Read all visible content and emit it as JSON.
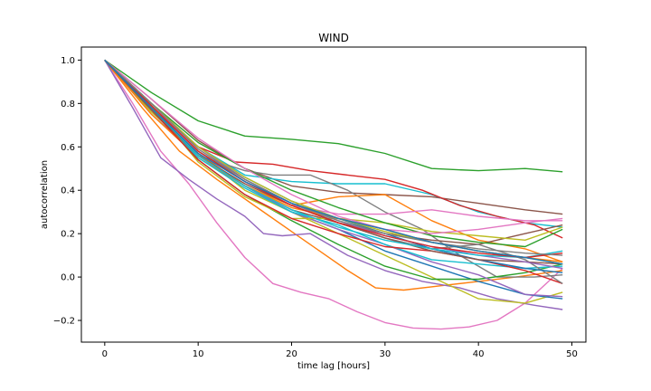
{
  "chart_data": {
    "type": "line",
    "title": "WIND",
    "xlabel": "time lag [hours]",
    "ylabel": "autocorrelation",
    "xlim": [
      -2.5,
      51.5
    ],
    "ylim": [
      -0.3,
      1.06
    ],
    "xticks": [
      0,
      10,
      20,
      30,
      40,
      50
    ],
    "yticks": [
      -0.2,
      0.0,
      0.2,
      0.4,
      0.6,
      0.8,
      1.0
    ],
    "xtick_labels": [
      "0",
      "10",
      "20",
      "30",
      "40",
      "50"
    ],
    "ytick_labels": [
      "−0.2",
      "0.0",
      "0.2",
      "0.4",
      "0.6",
      "0.8",
      "1.0"
    ],
    "grid": false,
    "legend": false,
    "series": [
      {
        "color": "#2ca02c",
        "x": [
          0,
          5,
          10,
          15,
          20,
          25,
          30,
          35,
          40,
          45,
          49
        ],
        "y": [
          1.0,
          0.85,
          0.72,
          0.65,
          0.635,
          0.615,
          0.57,
          0.5,
          0.49,
          0.5,
          0.485
        ]
      },
      {
        "color": "#e377c2",
        "x": [
          0,
          3,
          6,
          9,
          12,
          15,
          18,
          21,
          24,
          27,
          30,
          33,
          36,
          39,
          42,
          45,
          49
        ],
        "y": [
          1.0,
          0.8,
          0.58,
          0.43,
          0.25,
          0.09,
          -0.03,
          -0.07,
          -0.1,
          -0.16,
          -0.21,
          -0.235,
          -0.24,
          -0.23,
          -0.2,
          -0.12,
          0.04
        ]
      },
      {
        "color": "#8c564b",
        "x": [
          0,
          5,
          10,
          15,
          20,
          25,
          30,
          35,
          40,
          45,
          49
        ],
        "y": [
          1.0,
          0.82,
          0.63,
          0.5,
          0.42,
          0.39,
          0.38,
          0.37,
          0.34,
          0.31,
          0.29
        ]
      },
      {
        "color": "#17becf",
        "x": [
          0,
          5,
          10,
          15,
          20,
          25,
          30,
          35,
          40,
          45,
          49
        ],
        "y": [
          1.0,
          0.8,
          0.6,
          0.47,
          0.44,
          0.43,
          0.43,
          0.38,
          0.3,
          0.25,
          0.23
        ]
      },
      {
        "color": "#d62728",
        "x": [
          0,
          5,
          10,
          14,
          18,
          22,
          26,
          30,
          34,
          38,
          42,
          46,
          49
        ],
        "y": [
          1.0,
          0.78,
          0.6,
          0.53,
          0.52,
          0.49,
          0.47,
          0.45,
          0.4,
          0.33,
          0.28,
          0.24,
          0.18
        ]
      },
      {
        "color": "#ff7f0e",
        "x": [
          0,
          4,
          8,
          12,
          16,
          20,
          23,
          26,
          29,
          32,
          36,
          40,
          44,
          49
        ],
        "y": [
          1.0,
          0.78,
          0.58,
          0.45,
          0.33,
          0.21,
          0.12,
          0.03,
          -0.05,
          -0.06,
          -0.04,
          -0.02,
          0.0,
          0.03
        ]
      },
      {
        "color": "#9467bd",
        "x": [
          0,
          3,
          6,
          9,
          12,
          15,
          17,
          19,
          22,
          26,
          30,
          34,
          38,
          42,
          46,
          49
        ],
        "y": [
          1.0,
          0.78,
          0.55,
          0.45,
          0.36,
          0.28,
          0.2,
          0.19,
          0.2,
          0.1,
          0.03,
          -0.02,
          -0.05,
          -0.1,
          -0.13,
          -0.15
        ]
      },
      {
        "color": "#bcbd22",
        "x": [
          0,
          5,
          10,
          15,
          20,
          25,
          30,
          35,
          40,
          45,
          49
        ],
        "y": [
          1.0,
          0.76,
          0.57,
          0.4,
          0.3,
          0.2,
          0.1,
          0.0,
          -0.1,
          -0.12,
          -0.07
        ]
      },
      {
        "color": "#7f7f7f",
        "x": [
          0,
          5,
          10,
          15,
          18,
          22,
          26,
          30,
          34,
          38,
          42,
          46,
          49
        ],
        "y": [
          1.0,
          0.75,
          0.56,
          0.49,
          0.47,
          0.47,
          0.4,
          0.3,
          0.22,
          0.1,
          0.0,
          0.0,
          0.01
        ]
      },
      {
        "color": "#1f77b4",
        "x": [
          0,
          5,
          10,
          15,
          20,
          25,
          30,
          35,
          40,
          45,
          49
        ],
        "y": [
          1.0,
          0.77,
          0.56,
          0.42,
          0.3,
          0.22,
          0.12,
          0.05,
          -0.02,
          -0.08,
          -0.1
        ]
      },
      {
        "color": "#ff7f0e",
        "x": [
          0,
          5,
          10,
          15,
          20,
          25,
          30,
          35,
          40,
          45,
          49
        ],
        "y": [
          1.0,
          0.75,
          0.55,
          0.42,
          0.33,
          0.37,
          0.38,
          0.26,
          0.17,
          0.13,
          0.07
        ]
      },
      {
        "color": "#2ca02c",
        "x": [
          0,
          5,
          10,
          15,
          20,
          25,
          30,
          35,
          40,
          45,
          49
        ],
        "y": [
          1.0,
          0.78,
          0.54,
          0.38,
          0.26,
          0.15,
          0.05,
          -0.01,
          -0.01,
          0.02,
          0.06
        ]
      },
      {
        "color": "#e377c2",
        "x": [
          0,
          5,
          10,
          15,
          20,
          25,
          30,
          35,
          40,
          45,
          49
        ],
        "y": [
          1.0,
          0.8,
          0.58,
          0.44,
          0.33,
          0.29,
          0.29,
          0.31,
          0.28,
          0.26,
          0.26
        ]
      },
      {
        "color": "#8c564b",
        "x": [
          0,
          5,
          10,
          15,
          20,
          25,
          30,
          35,
          40,
          45,
          49
        ],
        "y": [
          1.0,
          0.79,
          0.56,
          0.42,
          0.31,
          0.25,
          0.2,
          0.17,
          0.15,
          0.2,
          0.24
        ]
      },
      {
        "color": "#9467bd",
        "x": [
          0,
          5,
          10,
          15,
          20,
          25,
          30,
          35,
          40,
          45,
          49
        ],
        "y": [
          1.0,
          0.78,
          0.56,
          0.42,
          0.3,
          0.22,
          0.15,
          0.07,
          0.01,
          -0.08,
          -0.09
        ]
      },
      {
        "color": "#17becf",
        "x": [
          0,
          5,
          10,
          15,
          20,
          25,
          30,
          35,
          40,
          45,
          49
        ],
        "y": [
          1.0,
          0.77,
          0.55,
          0.41,
          0.3,
          0.24,
          0.15,
          0.08,
          0.06,
          0.04,
          0.05
        ]
      },
      {
        "color": "#bcbd22",
        "x": [
          0,
          5,
          10,
          15,
          20,
          25,
          30,
          35,
          40,
          45,
          49
        ],
        "y": [
          1.0,
          0.79,
          0.53,
          0.37,
          0.27,
          0.27,
          0.25,
          0.21,
          0.19,
          0.17,
          0.23
        ]
      },
      {
        "color": "#d62728",
        "x": [
          0,
          5,
          10,
          15,
          20,
          25,
          30,
          35,
          40,
          45,
          49
        ],
        "y": [
          1.0,
          0.77,
          0.54,
          0.38,
          0.27,
          0.2,
          0.14,
          0.12,
          0.08,
          0.03,
          -0.03
        ]
      },
      {
        "color": "#7f7f7f",
        "x": [
          0,
          5,
          10,
          15,
          20,
          25,
          30,
          35,
          40,
          45,
          49
        ],
        "y": [
          1.0,
          0.79,
          0.58,
          0.45,
          0.34,
          0.25,
          0.18,
          0.13,
          0.15,
          0.08,
          -0.03
        ]
      },
      {
        "color": "#1f77b4",
        "x": [
          0,
          5,
          10,
          15,
          20,
          25,
          30,
          35,
          40,
          45,
          49
        ],
        "y": [
          1.0,
          0.8,
          0.6,
          0.46,
          0.35,
          0.27,
          0.2,
          0.13,
          0.08,
          0.04,
          0.02
        ]
      },
      {
        "color": "#ff7f0e",
        "x": [
          0,
          5,
          10,
          15,
          20,
          25,
          30,
          35,
          40,
          45,
          49
        ],
        "y": [
          1.0,
          0.78,
          0.57,
          0.42,
          0.32,
          0.27,
          0.22,
          0.16,
          0.12,
          0.09,
          0.07
        ]
      },
      {
        "color": "#2ca02c",
        "x": [
          0,
          5,
          10,
          15,
          20,
          25,
          30,
          35,
          40,
          45,
          49
        ],
        "y": [
          1.0,
          0.8,
          0.62,
          0.5,
          0.4,
          0.32,
          0.25,
          0.19,
          0.16,
          0.14,
          0.22
        ]
      },
      {
        "color": "#e377c2",
        "x": [
          0,
          5,
          10,
          15,
          20,
          25,
          30,
          35,
          40,
          45,
          49
        ],
        "y": [
          1.0,
          0.82,
          0.64,
          0.5,
          0.38,
          0.28,
          0.22,
          0.2,
          0.22,
          0.25,
          0.27
        ]
      },
      {
        "color": "#8c564b",
        "x": [
          0,
          5,
          10,
          15,
          20,
          25,
          30,
          35,
          40,
          45,
          49
        ],
        "y": [
          1.0,
          0.77,
          0.56,
          0.43,
          0.33,
          0.25,
          0.18,
          0.12,
          0.08,
          0.07,
          0.06
        ]
      },
      {
        "color": "#9467bd",
        "x": [
          0,
          5,
          10,
          15,
          20,
          25,
          30,
          35,
          40,
          45,
          49
        ],
        "y": [
          1.0,
          0.8,
          0.6,
          0.45,
          0.34,
          0.26,
          0.19,
          0.14,
          0.1,
          0.07,
          0.04
        ]
      },
      {
        "color": "#17becf",
        "x": [
          0,
          5,
          10,
          15,
          20,
          25,
          30,
          35,
          40,
          45,
          49
        ],
        "y": [
          1.0,
          0.78,
          0.56,
          0.42,
          0.31,
          0.23,
          0.17,
          0.13,
          0.1,
          0.09,
          0.12
        ]
      },
      {
        "color": "#bcbd22",
        "x": [
          0,
          5,
          10,
          15,
          20,
          25,
          30,
          35,
          40,
          45,
          49
        ],
        "y": [
          1.0,
          0.8,
          0.6,
          0.46,
          0.35,
          0.27,
          0.21,
          0.16,
          0.12,
          0.09,
          0.06
        ]
      },
      {
        "color": "#d62728",
        "x": [
          0,
          5,
          10,
          15,
          20,
          25,
          30,
          35,
          40,
          45,
          49
        ],
        "y": [
          1.0,
          0.79,
          0.58,
          0.44,
          0.33,
          0.25,
          0.19,
          0.14,
          0.11,
          0.09,
          0.11
        ]
      },
      {
        "color": "#7f7f7f",
        "x": [
          0,
          5,
          10,
          15,
          20,
          25,
          30,
          35,
          40,
          45,
          49
        ],
        "y": [
          1.0,
          0.8,
          0.59,
          0.45,
          0.34,
          0.26,
          0.2,
          0.16,
          0.13,
          0.11,
          0.1
        ]
      },
      {
        "color": "#1f77b4",
        "x": [
          0,
          5,
          10,
          15,
          20,
          25,
          30,
          35,
          40,
          45,
          49
        ],
        "y": [
          1.0,
          0.78,
          0.57,
          0.44,
          0.34,
          0.27,
          0.22,
          0.16,
          0.12,
          0.09,
          0.06
        ]
      }
    ]
  }
}
